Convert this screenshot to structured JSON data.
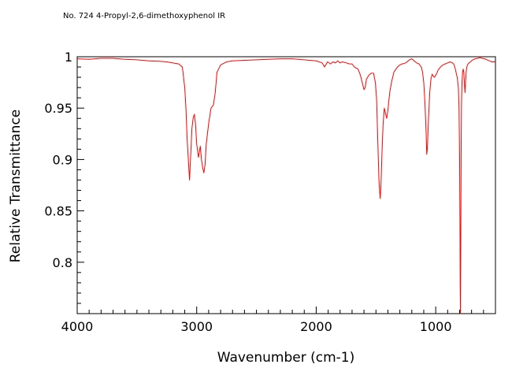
{
  "chart_data": {
    "type": "line",
    "title": "No. 724 4-Propyl-2,6-dimethoxyphenol IR",
    "xlabel": "Wavenumber (cm-1)",
    "ylabel": "Relative Transmittance",
    "xlim": [
      4000,
      500
    ],
    "ylim": [
      0.75,
      1.0
    ],
    "x_reversed": true,
    "x_ticks": [
      4000,
      3000,
      2000,
      1000
    ],
    "y_ticks": [
      1,
      0.95,
      0.9,
      0.85,
      0.8
    ],
    "x_tick_labels": [
      "4000",
      "3000",
      "2000",
      "1000"
    ],
    "y_tick_labels": [
      "1",
      "0.95",
      "0.9",
      "0.85",
      "0.8"
    ],
    "grid": false,
    "series": [
      {
        "color": "#ff0000",
        "points": [
          [
            4000,
            0.998
          ],
          [
            3900,
            0.9975
          ],
          [
            3800,
            0.9985
          ],
          [
            3700,
            0.9985
          ],
          [
            3600,
            0.9975
          ],
          [
            3500,
            0.997
          ],
          [
            3400,
            0.996
          ],
          [
            3300,
            0.9955
          ],
          [
            3250,
            0.995
          ],
          [
            3200,
            0.994
          ],
          [
            3150,
            0.993
          ],
          [
            3120,
            0.99
          ],
          [
            3100,
            0.97
          ],
          [
            3090,
            0.95
          ],
          [
            3080,
            0.92
          ],
          [
            3070,
            0.9
          ],
          [
            3060,
            0.88
          ],
          [
            3050,
            0.905
          ],
          [
            3040,
            0.93
          ],
          [
            3030,
            0.94
          ],
          [
            3020,
            0.944
          ],
          [
            3010,
            0.935
          ],
          [
            3000,
            0.915
          ],
          [
            2985,
            0.902
          ],
          [
            2970,
            0.913
          ],
          [
            2960,
            0.9
          ],
          [
            2950,
            0.892
          ],
          [
            2940,
            0.887
          ],
          [
            2930,
            0.895
          ],
          [
            2920,
            0.915
          ],
          [
            2900,
            0.935
          ],
          [
            2880,
            0.95
          ],
          [
            2860,
            0.953
          ],
          [
            2845,
            0.965
          ],
          [
            2830,
            0.985
          ],
          [
            2800,
            0.992
          ],
          [
            2750,
            0.995
          ],
          [
            2700,
            0.996
          ],
          [
            2600,
            0.9965
          ],
          [
            2500,
            0.997
          ],
          [
            2400,
            0.9975
          ],
          [
            2300,
            0.998
          ],
          [
            2200,
            0.998
          ],
          [
            2100,
            0.997
          ],
          [
            2000,
            0.996
          ],
          [
            1950,
            0.994
          ],
          [
            1930,
            0.99
          ],
          [
            1920,
            0.992
          ],
          [
            1905,
            0.995
          ],
          [
            1880,
            0.993
          ],
          [
            1860,
            0.995
          ],
          [
            1840,
            0.994
          ],
          [
            1820,
            0.996
          ],
          [
            1800,
            0.994
          ],
          [
            1780,
            0.995
          ],
          [
            1750,
            0.994
          ],
          [
            1720,
            0.993
          ],
          [
            1700,
            0.993
          ],
          [
            1680,
            0.99
          ],
          [
            1650,
            0.988
          ],
          [
            1630,
            0.982
          ],
          [
            1615,
            0.975
          ],
          [
            1600,
            0.968
          ],
          [
            1590,
            0.97
          ],
          [
            1580,
            0.978
          ],
          [
            1560,
            0.982
          ],
          [
            1540,
            0.984
          ],
          [
            1520,
            0.984
          ],
          [
            1505,
            0.975
          ],
          [
            1495,
            0.96
          ],
          [
            1485,
            0.92
          ],
          [
            1475,
            0.88
          ],
          [
            1465,
            0.862
          ],
          [
            1458,
            0.875
          ],
          [
            1450,
            0.905
          ],
          [
            1440,
            0.935
          ],
          [
            1430,
            0.95
          ],
          [
            1420,
            0.945
          ],
          [
            1410,
            0.94
          ],
          [
            1400,
            0.948
          ],
          [
            1385,
            0.965
          ],
          [
            1370,
            0.975
          ],
          [
            1350,
            0.985
          ],
          [
            1320,
            0.99
          ],
          [
            1300,
            0.992
          ],
          [
            1280,
            0.993
          ],
          [
            1250,
            0.994
          ],
          [
            1220,
            0.997
          ],
          [
            1200,
            0.998
          ],
          [
            1180,
            0.996
          ],
          [
            1160,
            0.994
          ],
          [
            1140,
            0.993
          ],
          [
            1120,
            0.99
          ],
          [
            1110,
            0.985
          ],
          [
            1100,
            0.975
          ],
          [
            1090,
            0.955
          ],
          [
            1080,
            0.925
          ],
          [
            1075,
            0.905
          ],
          [
            1070,
            0.91
          ],
          [
            1060,
            0.94
          ],
          [
            1050,
            0.965
          ],
          [
            1040,
            0.978
          ],
          [
            1030,
            0.983
          ],
          [
            1020,
            0.981
          ],
          [
            1010,
            0.98
          ],
          [
            1000,
            0.982
          ],
          [
            990,
            0.984
          ],
          [
            980,
            0.987
          ],
          [
            960,
            0.99
          ],
          [
            940,
            0.992
          ],
          [
            920,
            0.993
          ],
          [
            900,
            0.994
          ],
          [
            880,
            0.995
          ],
          [
            860,
            0.994
          ],
          [
            850,
            0.993
          ],
          [
            840,
            0.99
          ],
          [
            830,
            0.985
          ],
          [
            820,
            0.98
          ],
          [
            810,
            0.97
          ],
          [
            805,
            0.95
          ],
          [
            800,
            0.9
          ],
          [
            797,
            0.84
          ],
          [
            795,
            0.775
          ],
          [
            793,
            0.74
          ],
          [
            790,
            0.83
          ],
          [
            787,
            0.91
          ],
          [
            784,
            0.955
          ],
          [
            780,
            0.975
          ],
          [
            775,
            0.985
          ],
          [
            770,
            0.988
          ],
          [
            765,
            0.985
          ],
          [
            760,
            0.975
          ],
          [
            755,
            0.965
          ],
          [
            750,
            0.975
          ],
          [
            745,
            0.985
          ],
          [
            740,
            0.99
          ],
          [
            730,
            0.993
          ],
          [
            710,
            0.995
          ],
          [
            690,
            0.997
          ],
          [
            670,
            0.998
          ],
          [
            650,
            0.9985
          ],
          [
            630,
            0.999
          ],
          [
            610,
            0.9985
          ],
          [
            590,
            0.998
          ],
          [
            570,
            0.997
          ],
          [
            550,
            0.996
          ],
          [
            530,
            0.995
          ],
          [
            510,
            0.995
          ],
          [
            500,
            0.996
          ]
        ]
      }
    ]
  }
}
